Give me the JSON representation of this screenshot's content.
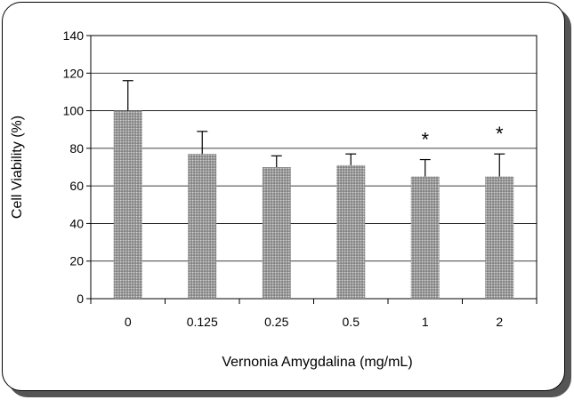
{
  "chart_data": {
    "type": "bar",
    "title": "",
    "xlabel": "Vernonia Amygdalina (mg/mL)",
    "ylabel": "Cell Viability (%)",
    "ylim": [
      0,
      140
    ],
    "yticks": [
      0,
      20,
      40,
      60,
      80,
      100,
      120,
      140
    ],
    "grid": "horizontal",
    "categories": [
      "0",
      "0.125",
      "0.25",
      "0.5",
      "1",
      "2"
    ],
    "values": [
      100,
      77,
      70,
      71,
      65,
      65
    ],
    "error_upper": [
      116,
      89,
      76,
      77,
      74,
      77
    ],
    "significance": [
      "",
      "",
      "",
      "",
      "*",
      "*"
    ],
    "bar_color": "#9a9a9a"
  }
}
